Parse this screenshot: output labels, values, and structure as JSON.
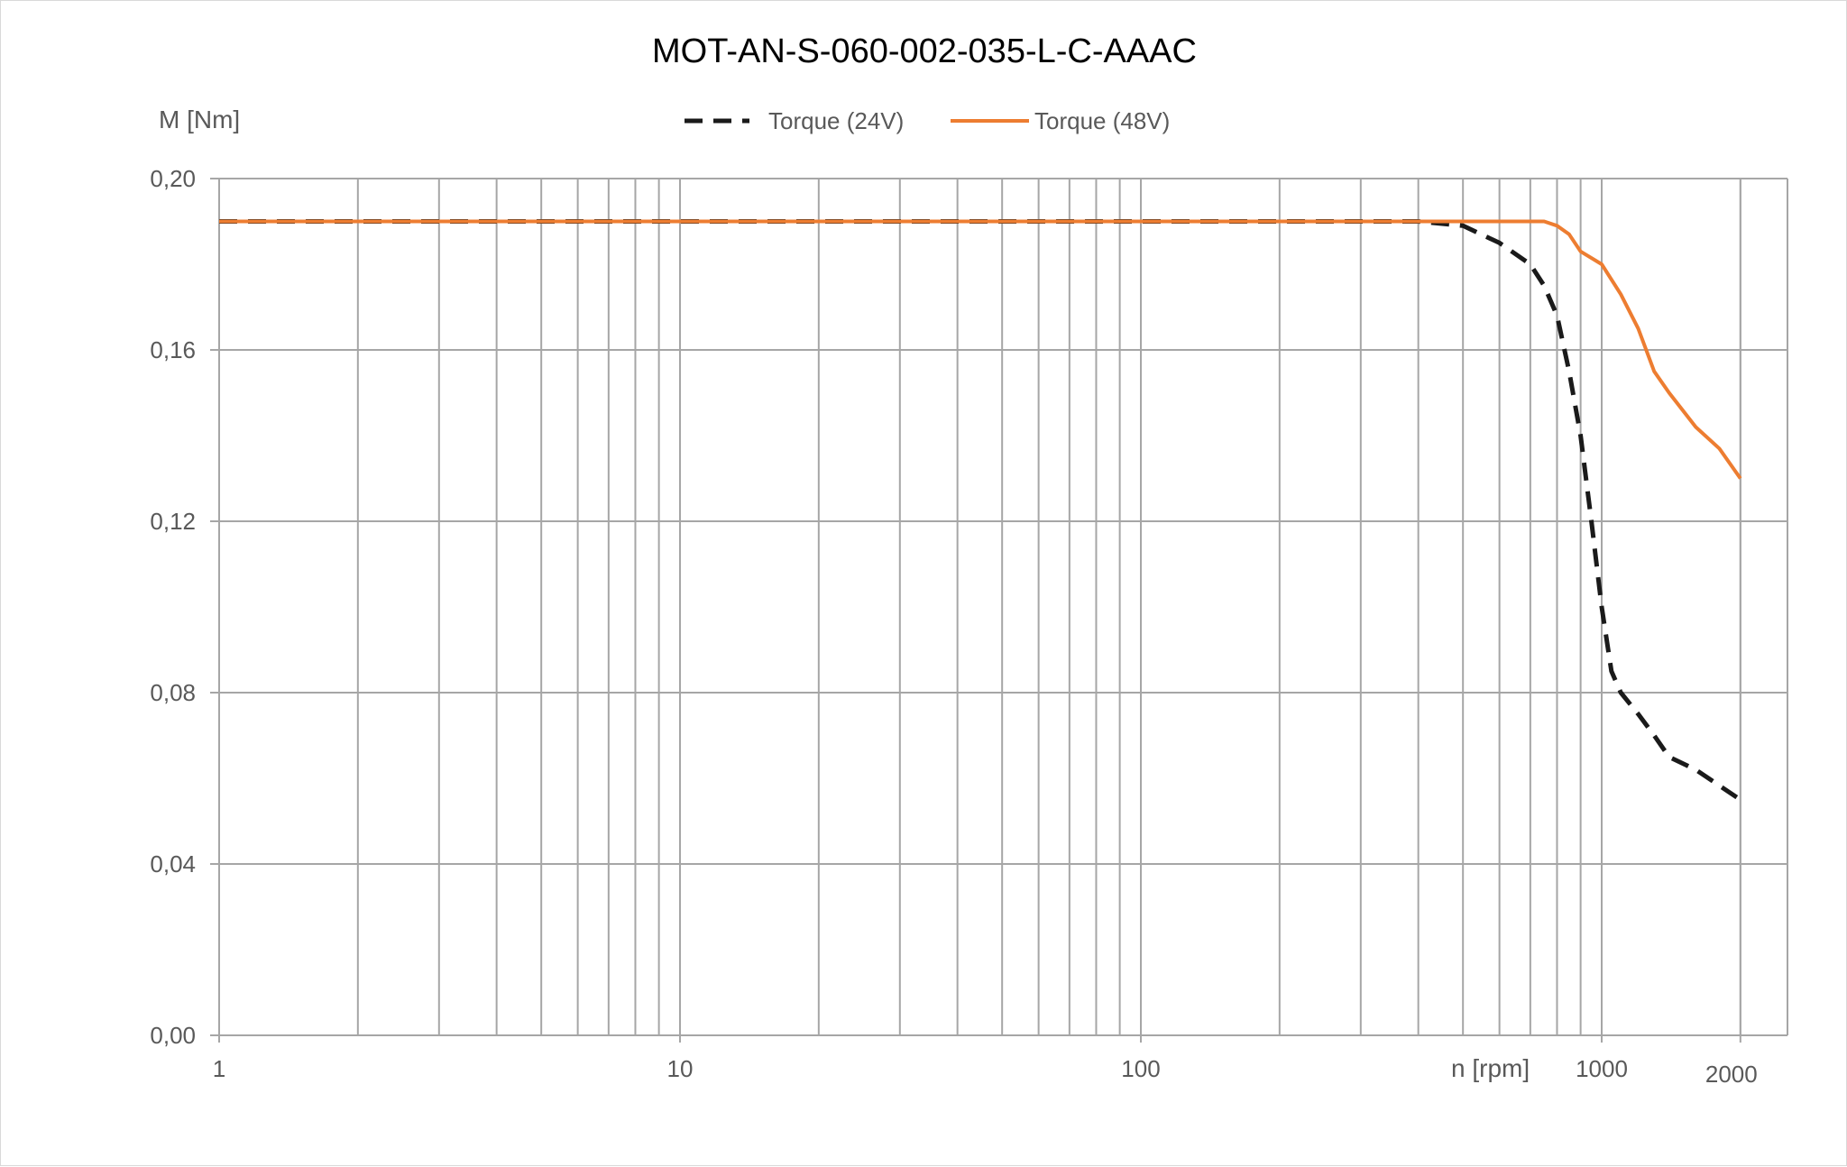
{
  "chart_data": {
    "type": "line",
    "title": "MOT-AN-S-060-002-035-L-C-AAAC",
    "ylabel": "M [Nm]",
    "xlabel": "n [rpm]",
    "x_scale": "log",
    "xlim": [
      1,
      2000
    ],
    "ylim": [
      0,
      0.2
    ],
    "x_ticks": [
      {
        "value": 1,
        "label": "1"
      },
      {
        "value": 10,
        "label": "10"
      },
      {
        "value": 100,
        "label": "100"
      },
      {
        "value": 1000,
        "label": "1000"
      },
      {
        "value": 2000,
        "label": "2000"
      }
    ],
    "y_ticks": [
      {
        "value": 0,
        "label": "0,00"
      },
      {
        "value": 0.04,
        "label": "0,04"
      },
      {
        "value": 0.08,
        "label": "0,08"
      },
      {
        "value": 0.12,
        "label": "0,12"
      },
      {
        "value": 0.16,
        "label": "0,16"
      },
      {
        "value": 0.2,
        "label": "0,20"
      }
    ],
    "grid": true,
    "legend_position": "top-center",
    "series": [
      {
        "name": "Torque (24V)",
        "color": "#1a1a1a",
        "style": "dashed",
        "x": [
          1,
          100,
          400,
          500,
          600,
          700,
          750,
          800,
          850,
          900,
          950,
          1000,
          1050,
          1100,
          1200,
          1300,
          1400,
          1600,
          2000
        ],
        "y": [
          0.19,
          0.19,
          0.19,
          0.189,
          0.185,
          0.18,
          0.175,
          0.168,
          0.155,
          0.14,
          0.12,
          0.1,
          0.085,
          0.08,
          0.075,
          0.07,
          0.065,
          0.062,
          0.055
        ]
      },
      {
        "name": "Torque (48V)",
        "color": "#ed7d31",
        "style": "solid",
        "x": [
          1,
          100,
          500,
          700,
          750,
          800,
          850,
          900,
          1000,
          1100,
          1200,
          1300,
          1400,
          1600,
          1800,
          2000
        ],
        "y": [
          0.19,
          0.19,
          0.19,
          0.19,
          0.19,
          0.189,
          0.187,
          0.183,
          0.18,
          0.173,
          0.165,
          0.155,
          0.15,
          0.142,
          0.137,
          0.13
        ]
      }
    ]
  }
}
